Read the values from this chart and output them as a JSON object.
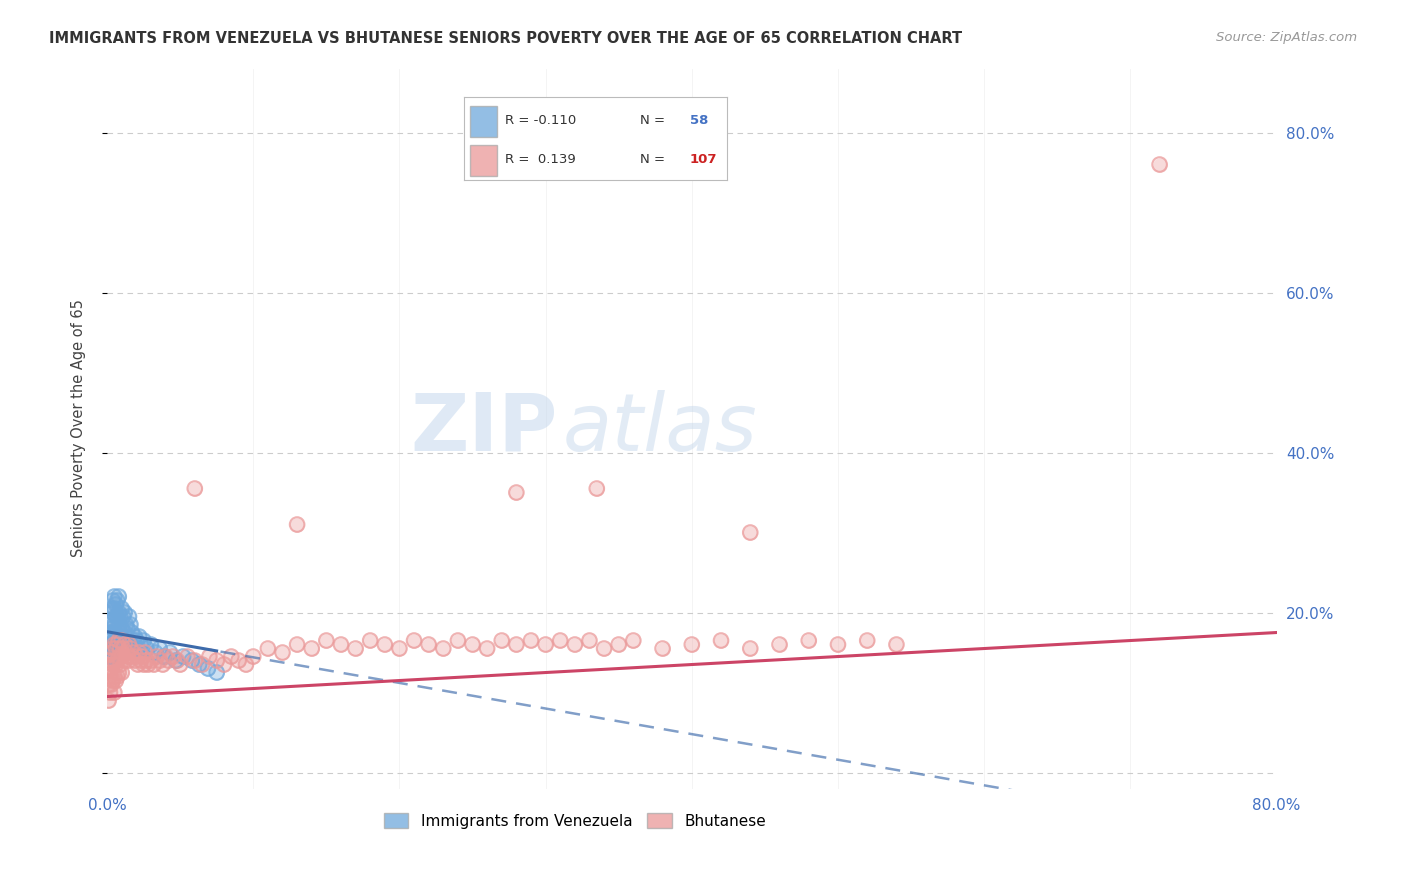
{
  "title": "IMMIGRANTS FROM VENEZUELA VS BHUTANESE SENIORS POVERTY OVER THE AGE OF 65 CORRELATION CHART",
  "source": "Source: ZipAtlas.com",
  "ylabel": "Seniors Poverty Over the Age of 65",
  "xlim": [
    0.0,
    0.8
  ],
  "ylim": [
    -0.02,
    0.88
  ],
  "ytick_positions": [
    0.0,
    0.2,
    0.4,
    0.6,
    0.8
  ],
  "yticklabels_right": [
    "",
    "20.0%",
    "40.0%",
    "60.0%",
    "80.0%"
  ],
  "blue_color": "#6fa8dc",
  "pink_color": "#ea9999",
  "blue_line_color": "#3d6bab",
  "pink_line_color": "#cc4466",
  "watermark_zip": "ZIP",
  "watermark_atlas": "atlas",
  "grid_color": "#cccccc",
  "bg_color": "#ffffff",
  "legend_items": [
    {
      "label": "R = -0.110",
      "n_label": "N =",
      "n_val": "58",
      "color": "#6fa8dc",
      "n_color": "#4472c4"
    },
    {
      "label": "R =  0.139",
      "n_label": "N =",
      "n_val": "107",
      "color": "#ea9999",
      "n_color": "#cc2222"
    }
  ]
}
